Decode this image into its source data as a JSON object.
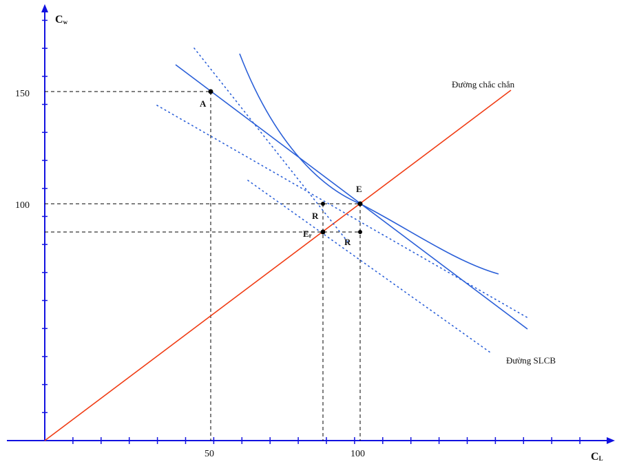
{
  "axes": {
    "y_label": "C",
    "y_label_sub": "w",
    "x_label": "C",
    "x_label_sub": "L",
    "y_ticks": [
      "150",
      "100"
    ],
    "x_ticks": [
      "50",
      "100"
    ]
  },
  "points": {
    "A": "A",
    "E": "E",
    "E_prime": "E",
    "E_prime_sub": "r",
    "R_vertical": "R",
    "R_horizontal": "R"
  },
  "curves": {
    "certainty_line": "Đường chắc chắn",
    "slcb_line": "Đường SLCB"
  },
  "colors": {
    "axis": "#1010e0",
    "certainty": "#f03c14",
    "curve": "#2a5fd8",
    "guide": "#000000"
  }
}
